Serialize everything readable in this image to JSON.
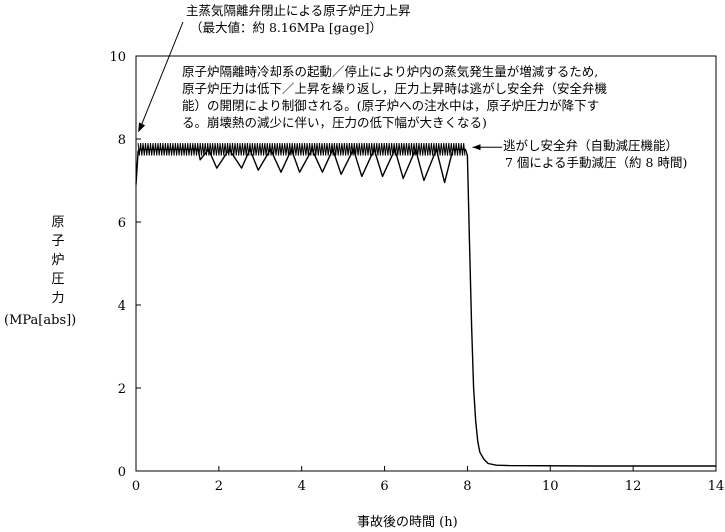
{
  "chart_data": {
    "type": "line",
    "title": "",
    "xlabel": "事故後の時間 (h)",
    "ylabel_chars": [
      "原",
      "子",
      "炉",
      "圧",
      "力"
    ],
    "ylabel_unit": "(MPa[abs])",
    "xlim": [
      0,
      14
    ],
    "ylim": [
      0,
      10
    ],
    "xticks": [
      0,
      2,
      4,
      6,
      8,
      10,
      12,
      14
    ],
    "yticks": [
      0,
      2,
      4,
      6,
      8,
      10
    ],
    "grid": false,
    "series": [
      {
        "x": [
          0,
          0.05,
          0.08,
          1.5,
          1.55,
          1.75,
          1.95,
          2.25,
          2.55,
          2.75,
          2.95,
          3.25,
          3.5,
          3.75,
          3.95,
          4.25,
          4.5,
          4.75,
          4.95,
          5.25,
          5.45,
          5.75,
          5.95,
          6.25,
          6.45,
          6.75,
          6.95,
          7.25,
          7.45,
          7.65,
          7.75,
          7.95,
          8.0,
          8.05,
          8.1,
          8.15,
          8.2,
          8.25,
          8.3,
          8.4,
          8.5,
          8.7,
          9.0,
          11.0,
          14.0
        ],
        "y": [
          6.9,
          7.7,
          7.75,
          7.75,
          7.5,
          7.75,
          7.3,
          7.75,
          7.3,
          7.75,
          7.25,
          7.75,
          7.2,
          7.75,
          7.2,
          7.75,
          7.2,
          7.75,
          7.15,
          7.75,
          7.1,
          7.75,
          7.1,
          7.75,
          7.05,
          7.75,
          7.0,
          7.75,
          6.95,
          7.75,
          7.75,
          7.75,
          7.6,
          5.5,
          3.5,
          2.0,
          1.2,
          0.7,
          0.45,
          0.28,
          0.18,
          0.14,
          0.13,
          0.12,
          0.12
        ]
      }
    ],
    "annotations": [
      {
        "lines": [
          "主蒸気隔離弁閉止による原子炉圧力上昇",
          "（最大値：約 8.16MPa [gage]）"
        ],
        "x": 0.05,
        "y": 8.16
      },
      {
        "lines": [
          "原子炉隔離時冷却系の起動／停止により炉内の蒸気発生量が増減するため,",
          "原子炉圧力は低下／上昇を繰り返し，圧力上昇時は逃がし安全弁（安全弁機",
          "能）の開閉により制御される。(原子炉への注水中は，原子炉圧力が降下す",
          "る。崩壊熱の減少に伴い，圧力の低下幅が大きくなる)"
        ]
      },
      {
        "lines": [
          "逃がし安全弁（自動減圧機能）",
          "7 個による手動減圧（約 8 時間)"
        ],
        "x": 8.05,
        "y": 7.8
      }
    ]
  }
}
